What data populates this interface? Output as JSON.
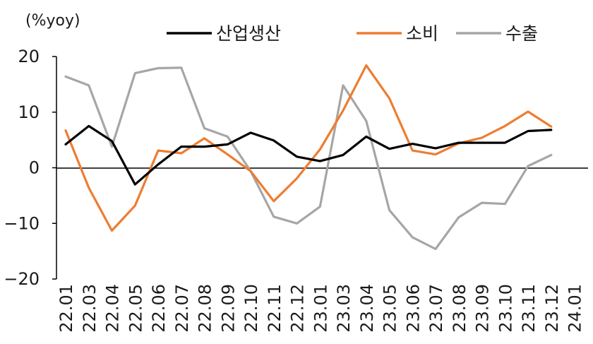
{
  "chart_data": {
    "type": "line",
    "unit_label": "(%yoy)",
    "categories": [
      "22.01",
      "22.03",
      "22.04",
      "22.05",
      "22.06",
      "22.07",
      "22.08",
      "22.09",
      "22.10",
      "22.11",
      "22.12",
      "23.01",
      "23.03",
      "23.04",
      "23.05",
      "23.06",
      "23.07",
      "23.08",
      "23.09",
      "23.10",
      "23.11",
      "23.12",
      "24.01"
    ],
    "y_ticks": [
      "20",
      "10",
      "0",
      "−10",
      "−20"
    ],
    "ylim": [
      -20,
      20
    ],
    "grid": false,
    "legend_position": "top",
    "series": [
      {
        "name": "산업생산",
        "color": "#000000",
        "values": [
          4.2,
          7.5,
          4.8,
          -3.0,
          0.6,
          3.8,
          3.8,
          4.2,
          6.3,
          4.9,
          2.0,
          1.2,
          2.3,
          5.6,
          3.4,
          4.3,
          3.5,
          4.5,
          4.5,
          4.5,
          6.6,
          6.8,
          null
        ]
      },
      {
        "name": "소비",
        "color": "#ED7D31",
        "values": [
          6.7,
          -3.6,
          -11.3,
          -6.8,
          3.1,
          2.6,
          5.3,
          2.4,
          -0.6,
          -6.0,
          -1.9,
          3.3,
          10.3,
          18.4,
          12.5,
          3.1,
          2.4,
          4.4,
          5.4,
          7.5,
          10.1,
          7.4,
          null
        ]
      },
      {
        "name": "수출",
        "color": "#A6A6A6",
        "values": [
          16.4,
          14.8,
          3.8,
          17.0,
          17.9,
          18.0,
          7.1,
          5.6,
          -0.6,
          -8.8,
          -10.0,
          -7.0,
          14.8,
          8.4,
          -7.6,
          -12.5,
          -14.6,
          -8.9,
          -6.3,
          -6.5,
          0.3,
          2.3,
          null
        ]
      }
    ]
  }
}
